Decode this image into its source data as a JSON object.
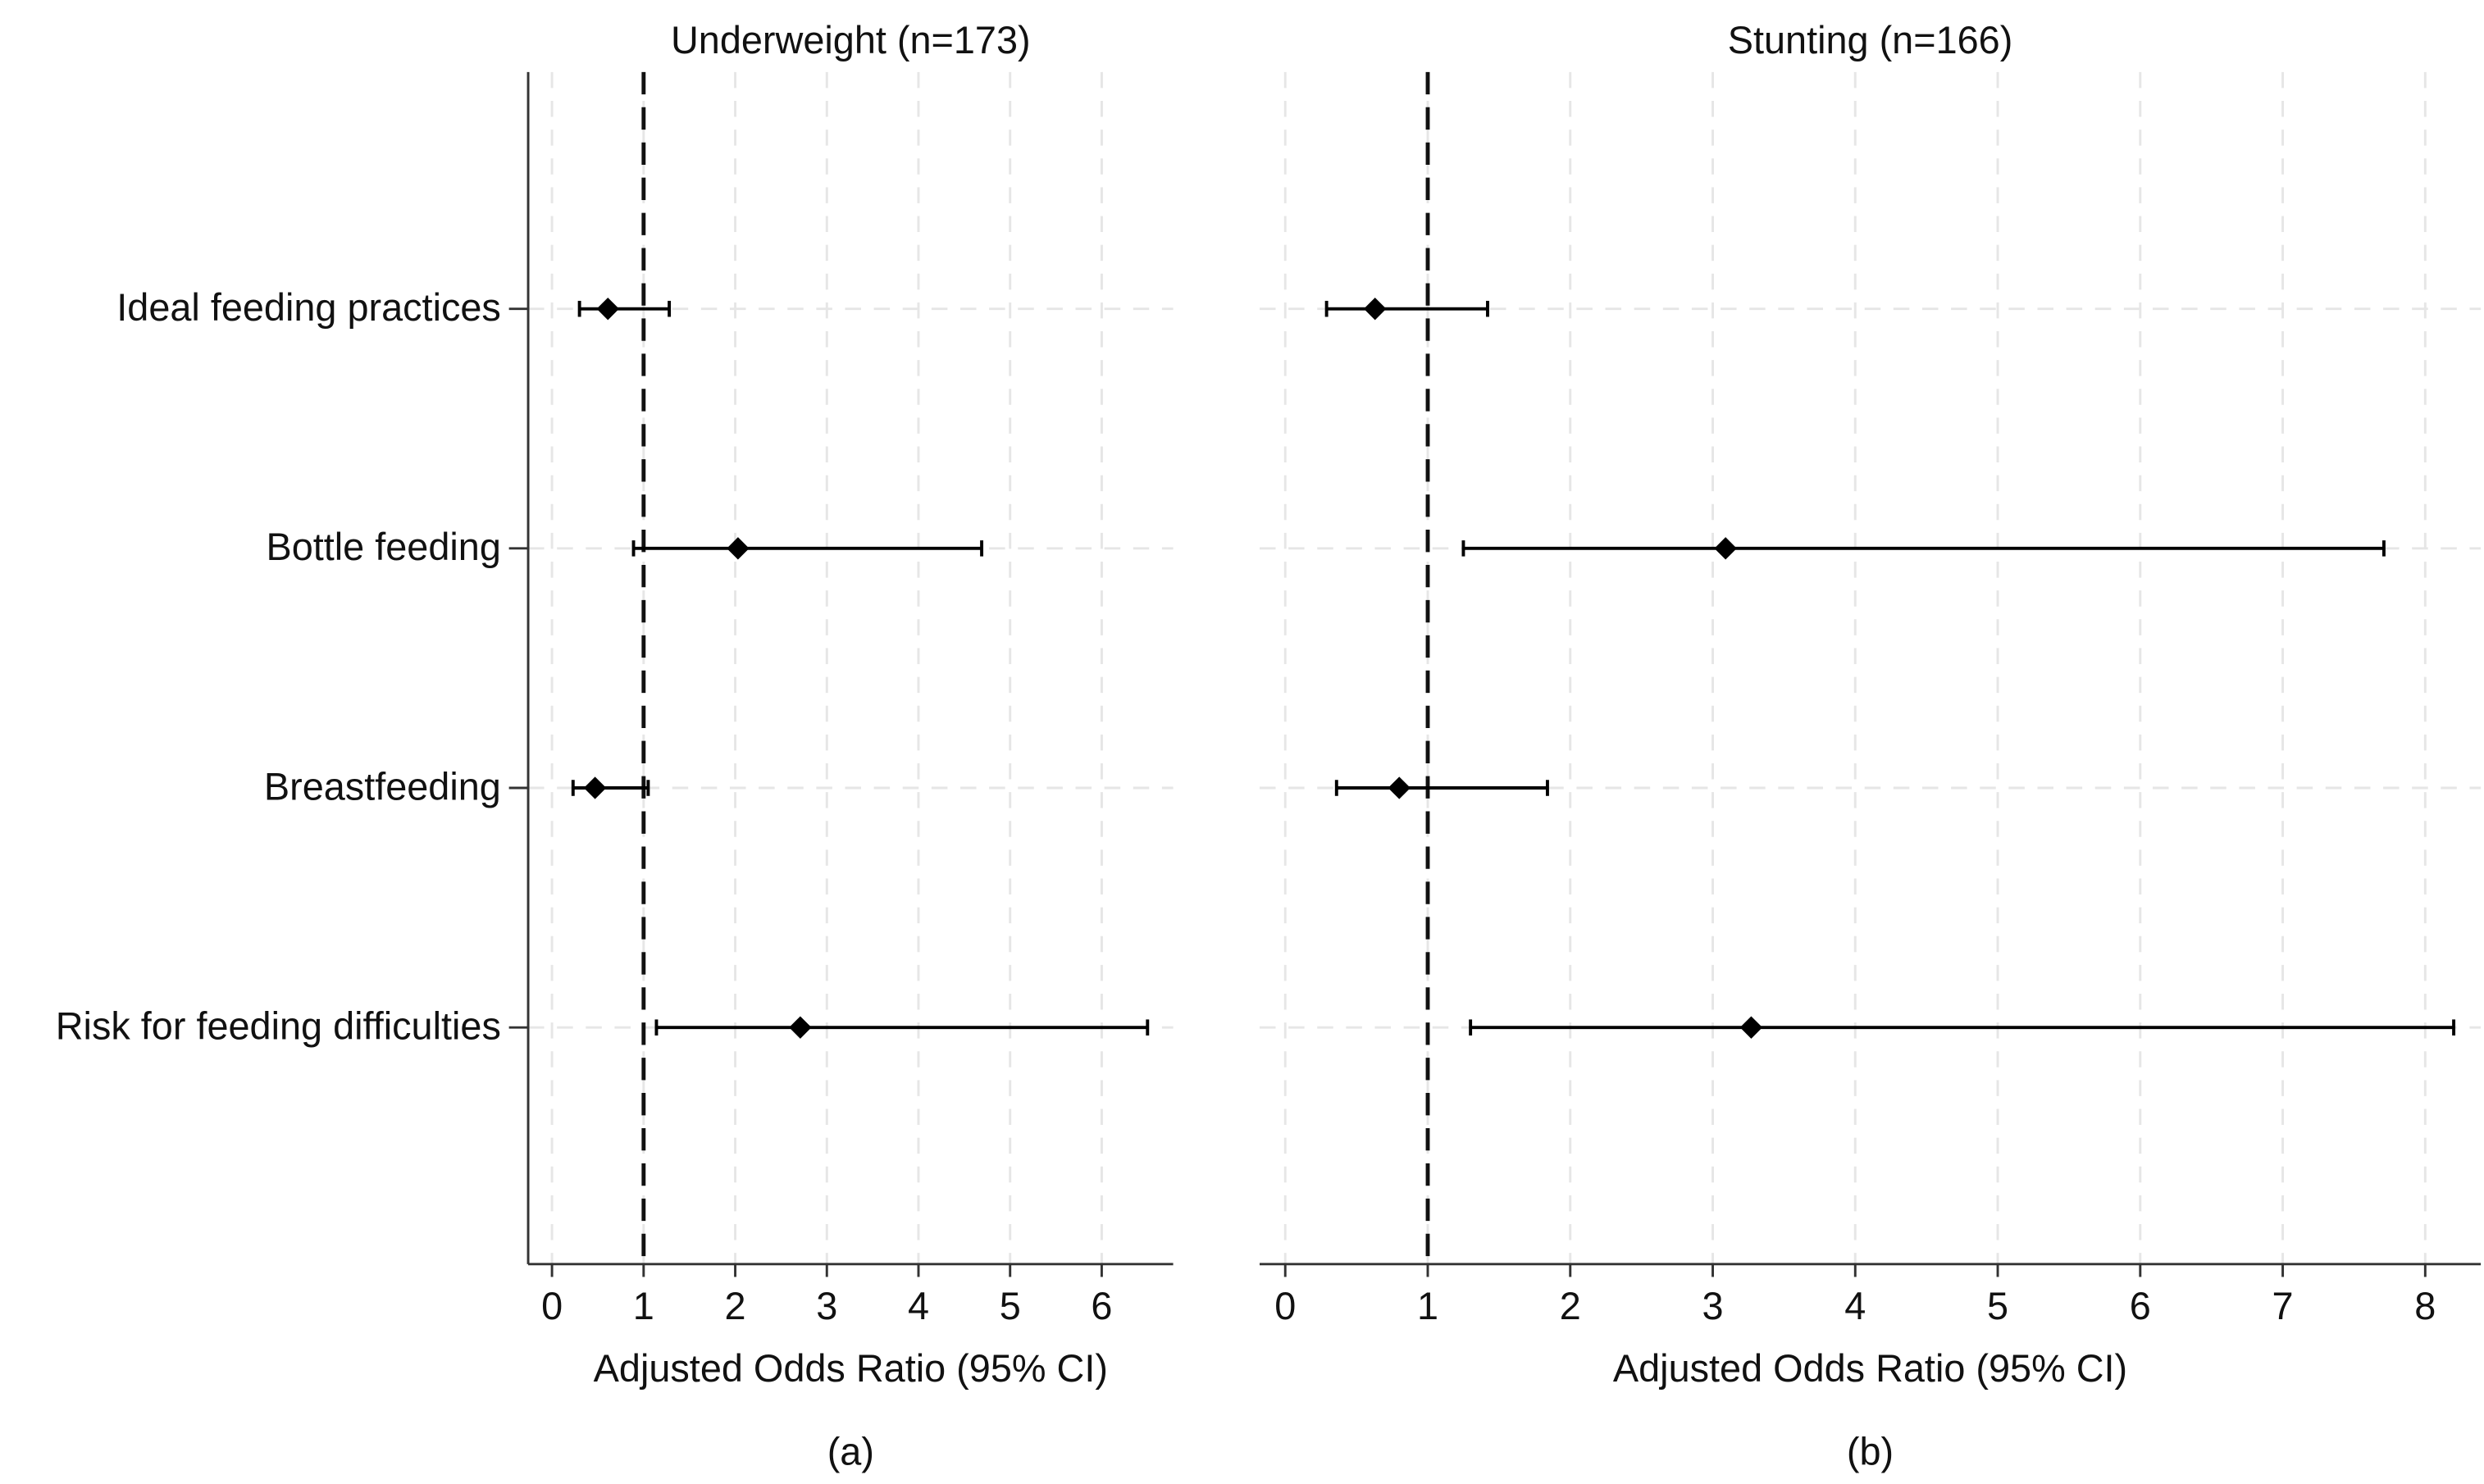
{
  "chart_data": [
    {
      "type": "forest",
      "title": "Underweight (n=173)",
      "x_label": "Adjusted Odds Ratio (95% CI)",
      "caption": "(a)",
      "categories": [
        "Ideal feeding practices",
        "Bottle feeding",
        "Breastfeeding",
        "Risk for feeding difficulties"
      ],
      "values": [
        0.61,
        2.03,
        0.47,
        2.71
      ],
      "lower": [
        0.3,
        0.89,
        0.23,
        1.14
      ],
      "upper": [
        1.28,
        4.69,
        1.05,
        6.5
      ],
      "reference_line": 1,
      "xlim": [
        -0.26,
        6.78
      ],
      "xticks": [
        0,
        1,
        2,
        3,
        4,
        5,
        6
      ],
      "grid": true,
      "y_axis_line": true,
      "color": "#000000"
    },
    {
      "type": "forest",
      "title": "Stunting (n=166)",
      "x_label": "Adjusted Odds Ratio (95% CI)",
      "caption": "(b)",
      "values": [
        0.63,
        3.09,
        0.8,
        3.27
      ],
      "lower": [
        0.29,
        1.25,
        0.36,
        1.3
      ],
      "upper": [
        1.42,
        7.71,
        1.84,
        8.2
      ],
      "reference_line": 1,
      "xlim": [
        -0.18,
        8.39
      ],
      "xticks": [
        0,
        1,
        2,
        3,
        4,
        5,
        6,
        7,
        8
      ],
      "grid": true,
      "y_axis_line": false,
      "color": "#000000"
    }
  ]
}
